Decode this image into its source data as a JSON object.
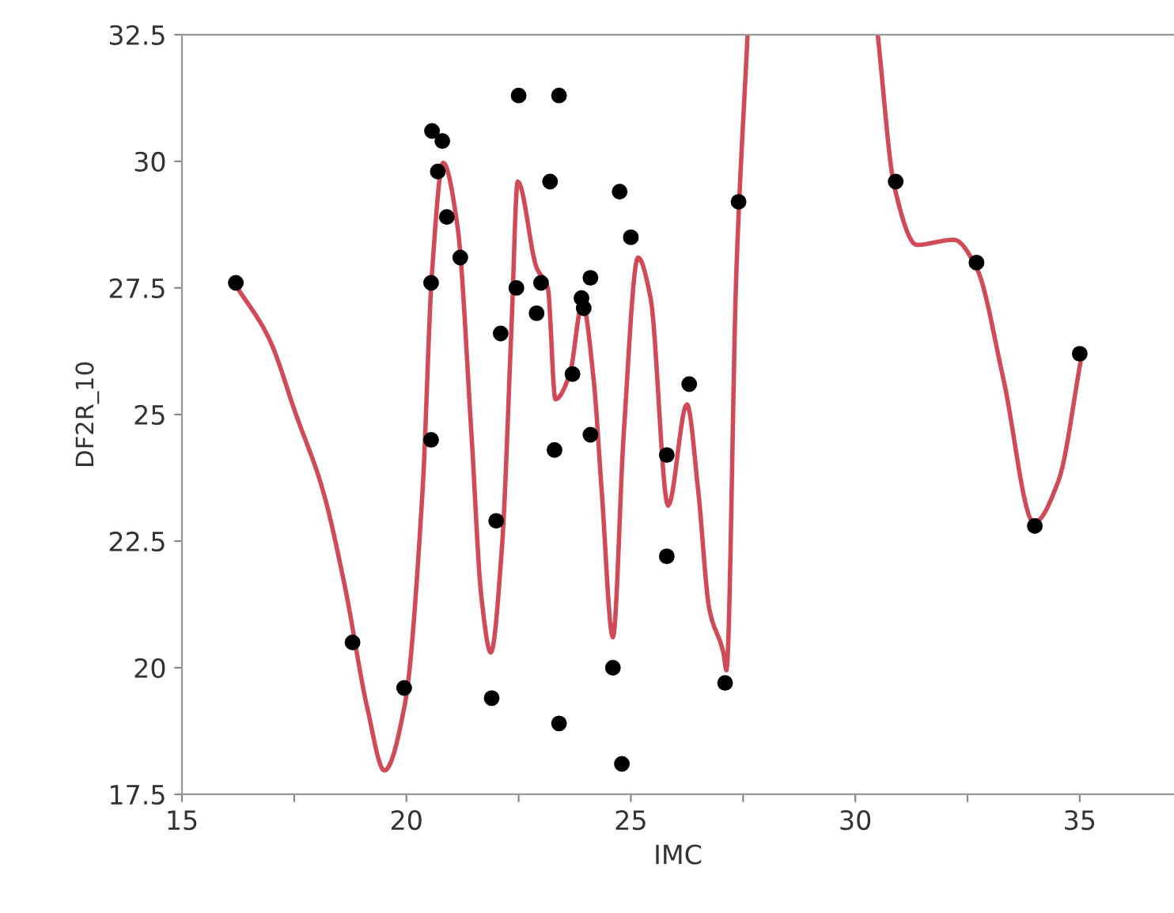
{
  "chart_data": {
    "type": "scatter",
    "xlabel": "IMC",
    "ylabel": "DF2R_10",
    "xlim": [
      15,
      37.1
    ],
    "ylim": [
      17.5,
      32.5
    ],
    "xticks": [
      15,
      {
        "value": 17.5,
        "label": null
      },
      20,
      {
        "value": 22.5,
        "label": null
      },
      25,
      {
        "value": 27.5,
        "label": null
      },
      30,
      {
        "value": 32.5,
        "label": null
      },
      35
    ],
    "yticks": [
      17.5,
      20,
      22.5,
      25,
      27.5,
      30,
      32.5
    ],
    "grid": false,
    "legend": false,
    "series": [
      {
        "color": "#000000",
        "marker": "circle",
        "x": [
          16.2,
          18.8,
          19.95,
          20.57,
          20.8,
          20.7,
          20.9,
          21.2,
          20.55,
          20.55,
          21.9,
          22.0,
          22.1,
          22.5,
          22.45,
          22.9,
          23.0,
          23.2,
          23.4,
          23.3,
          23.4,
          23.7,
          23.9,
          23.95,
          24.1,
          24.1,
          24.6,
          24.75,
          24.8,
          25.0,
          25.8,
          25.8,
          26.3,
          27.1,
          27.4,
          30.9,
          32.7,
          34.0,
          35.0
        ],
        "values": [
          27.6,
          20.5,
          19.6,
          30.6,
          30.4,
          29.8,
          28.9,
          28.1,
          27.6,
          24.5,
          19.4,
          22.9,
          26.6,
          31.3,
          27.5,
          27.0,
          27.6,
          29.6,
          31.3,
          24.3,
          18.9,
          25.8,
          27.3,
          27.1,
          27.7,
          24.6,
          20.0,
          29.4,
          18.1,
          28.5,
          24.2,
          22.2,
          25.6,
          19.7,
          29.2,
          29.6,
          28.0,
          22.8,
          26.2
        ]
      },
      {
        "type": "line",
        "color": "#d04a57",
        "marker": "none",
        "line_style": "solid",
        "x": [
          16.2,
          16.94,
          17.54,
          18.14,
          18.63,
          19.13,
          19.51,
          19.97,
          20.36,
          20.57,
          20.82,
          21.14,
          21.45,
          21.67,
          21.88,
          22.13,
          22.34,
          22.48,
          22.9,
          23.15,
          23.32,
          23.64,
          23.92,
          24.17,
          24.35,
          24.6,
          24.84,
          25.16,
          25.44,
          25.83,
          26.25,
          26.5,
          26.75,
          27.06,
          27.13,
          27.35,
          27.6,
          29.0,
          30.5,
          30.87,
          31.37,
          32.2,
          32.7,
          33.3,
          33.98,
          34.53,
          35.03
        ],
        "values": [
          27.55,
          26.5,
          25.0,
          23.5,
          21.6,
          19.2,
          17.97,
          19.3,
          23.5,
          27.8,
          29.97,
          28.7,
          24.6,
          21.4,
          20.3,
          22.4,
          26.7,
          29.6,
          27.9,
          27.5,
          25.3,
          25.8,
          27.2,
          25.7,
          23.5,
          20.6,
          24.6,
          28.1,
          27.3,
          23.2,
          25.2,
          23.5,
          21.15,
          20.3,
          19.95,
          27.8,
          32.5,
          null,
          32.5,
          29.5,
          28.35,
          28.45,
          27.9,
          25.7,
          22.86,
          23.7,
          26.1
        ]
      }
    ]
  }
}
